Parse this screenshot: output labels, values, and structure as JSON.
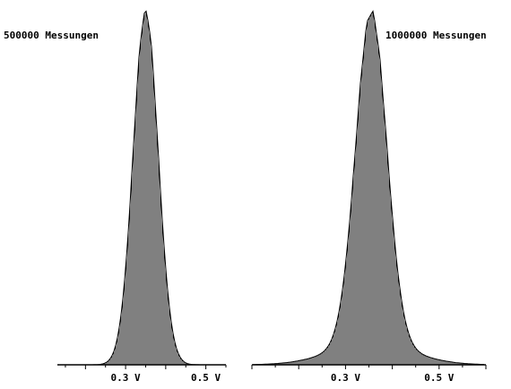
{
  "chart_data": [
    {
      "type": "bar",
      "annotation": "500000 Messungen",
      "tick_labels": [
        "0.3 V",
        "0.5 V"
      ],
      "tick_values": [
        0.3,
        0.5
      ],
      "xlim": [
        0.13,
        0.55
      ],
      "peak_voltage": 0.35,
      "grid": false,
      "axis_color": "#000000",
      "fill_color": "#000000",
      "distribution": {
        "shape": "approximately gaussian",
        "center": 0.35,
        "sigma": 0.031,
        "tail_sigma": 0.031,
        "tail_weight": 0.0,
        "relative_peak": 1.0
      }
    },
    {
      "type": "bar",
      "annotation": "1000000 Messungen",
      "tick_labels": [
        "0.3 V",
        "0.5 V"
      ],
      "tick_values": [
        0.3,
        0.5
      ],
      "xlim": [
        0.1,
        0.6
      ],
      "peak_voltage": 0.355,
      "grid": false,
      "axis_color": "#000000",
      "fill_color": "#000000",
      "distribution": {
        "shape": "approximately gaussian with wide tails",
        "center": 0.355,
        "sigma": 0.033,
        "tail_sigma": 0.085,
        "tail_weight": 0.06,
        "relative_peak": 1.0
      }
    }
  ]
}
